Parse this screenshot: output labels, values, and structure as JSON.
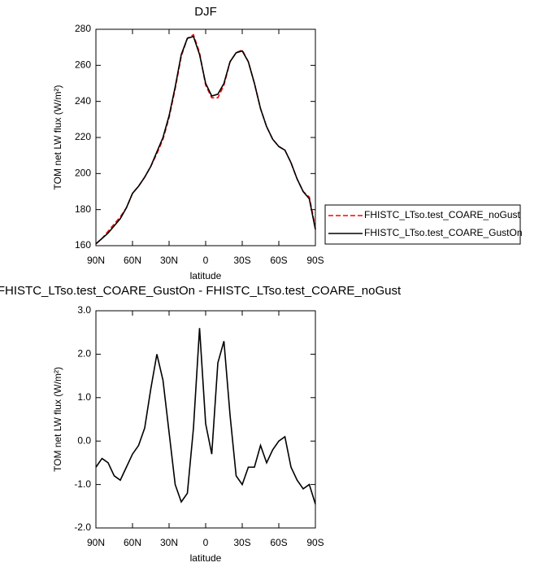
{
  "chart_data": [
    {
      "type": "line",
      "title": "DJF",
      "xlabel": "latitude",
      "ylabel": "TOM net LW flux (W/m²)",
      "x": [
        90,
        85,
        80,
        75,
        70,
        65,
        60,
        55,
        50,
        45,
        40,
        35,
        30,
        25,
        20,
        15,
        10,
        5,
        0,
        -5,
        -10,
        -15,
        -20,
        -25,
        -30,
        -35,
        -40,
        -45,
        -50,
        -55,
        -60,
        -65,
        -70,
        -75,
        -80,
        -85,
        -90
      ],
      "xlim": [
        90,
        -90
      ],
      "xticks": [
        {
          "value": 90,
          "label": "90N"
        },
        {
          "value": 60,
          "label": "60N"
        },
        {
          "value": 30,
          "label": "30N"
        },
        0,
        {
          "value": -30,
          "label": "30S"
        },
        {
          "value": -60,
          "label": "60S"
        },
        {
          "value": -90,
          "label": "90S"
        }
      ],
      "ylim": [
        160,
        280
      ],
      "yticks": [
        160,
        180,
        200,
        220,
        240,
        260,
        280
      ],
      "series": [
        {
          "name": "FHISTC_LTso.test_COARE_noGust",
          "color": "#ff0000",
          "line_style": "dashed",
          "values": [
            161,
            164,
            168,
            172,
            176,
            181,
            189,
            193,
            198,
            204,
            211,
            219,
            231,
            247,
            265,
            275,
            277,
            267,
            249,
            242,
            242,
            249,
            262,
            267,
            268.5,
            262,
            250,
            236,
            226,
            219,
            215,
            213,
            206,
            197,
            190,
            187,
            170
          ]
        },
        {
          "name": "FHISTC_LTso.test_COARE_GustOn",
          "color": "#000000",
          "line_style": "solid",
          "values": [
            161,
            164,
            167,
            171,
            175,
            181,
            189,
            193,
            198,
            204,
            212,
            220,
            232,
            248,
            266,
            275,
            276,
            266,
            250,
            243,
            244,
            250,
            262,
            267,
            268,
            262,
            250,
            236,
            226,
            219,
            215,
            213,
            206,
            197,
            190,
            186,
            169
          ]
        }
      ]
    },
    {
      "type": "line",
      "title": "FHISTC_LTso.test_COARE_GustOn - FHISTC_LTso.test_COARE_noGust",
      "xlabel": "latitude",
      "ylabel": "TOM net LW flux (W/m²)",
      "x": [
        90,
        85,
        80,
        75,
        70,
        65,
        60,
        55,
        50,
        45,
        40,
        35,
        30,
        25,
        20,
        15,
        10,
        5,
        0,
        -5,
        -10,
        -15,
        -20,
        -25,
        -30,
        -35,
        -40,
        -45,
        -50,
        -55,
        -60,
        -65,
        -70,
        -75,
        -80,
        -85,
        -90
      ],
      "xlim": [
        90,
        -90
      ],
      "xticks": [
        {
          "value": 90,
          "label": "90N"
        },
        {
          "value": 60,
          "label": "60N"
        },
        {
          "value": 30,
          "label": "30N"
        },
        0,
        {
          "value": -30,
          "label": "30S"
        },
        {
          "value": -60,
          "label": "60S"
        },
        {
          "value": -90,
          "label": "90S"
        }
      ],
      "ylim": [
        -2,
        3
      ],
      "yticks": [
        {
          "value": -2,
          "label": "-2.0"
        },
        {
          "value": -1,
          "label": "-1.0"
        },
        {
          "value": 0,
          "label": "0.0"
        },
        {
          "value": 1,
          "label": "1.0"
        },
        {
          "value": 2,
          "label": "2.0"
        },
        {
          "value": 3,
          "label": "3.0"
        }
      ],
      "series": [
        {
          "color": "#000000",
          "line_style": "solid",
          "values": [
            -0.6,
            -0.4,
            -0.5,
            -0.8,
            -0.9,
            -0.6,
            -0.3,
            -0.1,
            0.3,
            1.2,
            2.0,
            1.4,
            0.2,
            -1.0,
            -1.4,
            -1.2,
            0.3,
            2.6,
            0.4,
            -0.3,
            1.8,
            2.3,
            0.6,
            -0.8,
            -1.0,
            -0.6,
            -0.6,
            -0.1,
            -0.5,
            -0.2,
            0.0,
            0.1,
            -0.6,
            -0.9,
            -1.1,
            -1.0,
            -1.45
          ]
        }
      ]
    }
  ]
}
